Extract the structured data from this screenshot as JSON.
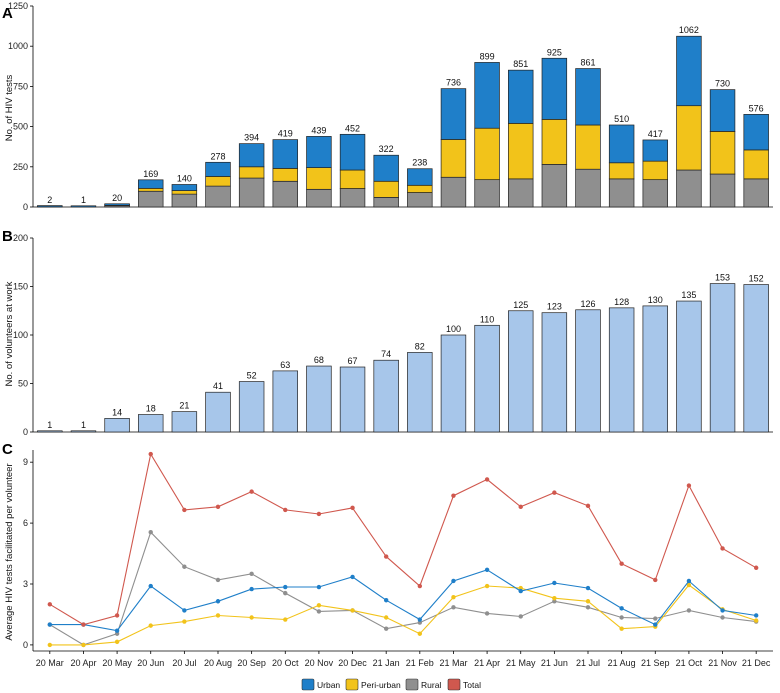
{
  "months": [
    "20 Mar",
    "20 Apr",
    "20 May",
    "20 Jun",
    "20 Jul",
    "20 Aug",
    "20 Sep",
    "20 Oct",
    "20 Nov",
    "20 Dec",
    "21 Jan",
    "21 Feb",
    "21 Mar",
    "21 Apr",
    "21 May",
    "21 Jun",
    "21 Jul",
    "21 Aug",
    "21 Sep",
    "21 Oct",
    "21 Nov",
    "21 Dec"
  ],
  "colors": {
    "urban": "#1f7fc9",
    "periurban": "#f2c31a",
    "rural": "#8f8f8f",
    "total": "#d0584e",
    "volunteers": "#a7c6ea"
  },
  "chart_data": [
    {
      "panel": "A",
      "type": "bar",
      "stacked": true,
      "ylabel": "No. of HIV tests",
      "ylim": [
        0,
        1250
      ],
      "yticks": [
        0,
        250,
        500,
        750,
        1000,
        1250
      ],
      "series": [
        {
          "name": "Rural",
          "values": [
            1,
            0,
            8,
            98,
            80,
            130,
            180,
            160,
            110,
            115,
            60,
            90,
            185,
            170,
            175,
            265,
            235,
            175,
            170,
            230,
            205,
            175
          ]
        },
        {
          "name": "Peri-urban",
          "values": [
            0,
            0,
            2,
            18,
            22,
            60,
            70,
            80,
            135,
            115,
            100,
            45,
            235,
            320,
            345,
            280,
            275,
            100,
            115,
            400,
            265,
            180
          ]
        },
        {
          "name": "Urban",
          "values": [
            1,
            1,
            10,
            53,
            38,
            88,
            144,
            179,
            194,
            222,
            162,
            103,
            316,
            409,
            331,
            380,
            351,
            235,
            132,
            432,
            260,
            221
          ]
        }
      ],
      "totals": [
        2,
        1,
        20,
        169,
        140,
        278,
        394,
        419,
        439,
        452,
        322,
        238,
        736,
        899,
        851,
        925,
        861,
        510,
        417,
        1062,
        730,
        576
      ]
    },
    {
      "panel": "B",
      "type": "bar",
      "ylabel": "No. of volunteers at work",
      "ylim": [
        0,
        200
      ],
      "yticks": [
        0,
        50,
        100,
        150,
        200
      ],
      "values": [
        1,
        1,
        14,
        18,
        21,
        41,
        52,
        63,
        68,
        67,
        74,
        82,
        100,
        110,
        125,
        123,
        126,
        128,
        130,
        135,
        153,
        152
      ]
    },
    {
      "panel": "C",
      "type": "line",
      "ylabel": "Average HIV tests facilitated per volunteer",
      "ylim": [
        -0.3,
        9.6
      ],
      "yticks": [
        0,
        3,
        6,
        9
      ],
      "series": [
        {
          "name": "Urban",
          "values": [
            1.0,
            1.0,
            0.7,
            2.9,
            1.7,
            2.15,
            2.75,
            2.85,
            2.85,
            3.35,
            2.2,
            1.25,
            3.15,
            3.7,
            2.65,
            3.05,
            2.8,
            1.8,
            1.0,
            3.15,
            1.7,
            1.45
          ]
        },
        {
          "name": "Peri-urban",
          "values": [
            0.0,
            0.0,
            0.15,
            0.95,
            1.15,
            1.45,
            1.35,
            1.25,
            1.95,
            1.7,
            1.35,
            0.55,
            2.35,
            2.9,
            2.8,
            2.3,
            2.15,
            0.8,
            0.9,
            2.95,
            1.75,
            1.2
          ]
        },
        {
          "name": "Rural",
          "values": [
            1.0,
            0.0,
            0.55,
            5.55,
            3.85,
            3.2,
            3.5,
            2.55,
            1.65,
            1.7,
            0.8,
            1.1,
            1.85,
            1.55,
            1.4,
            2.15,
            1.85,
            1.35,
            1.3,
            1.7,
            1.35,
            1.15
          ]
        },
        {
          "name": "Total",
          "values": [
            2.0,
            1.0,
            1.45,
            9.4,
            6.65,
            6.8,
            7.55,
            6.65,
            6.45,
            6.75,
            4.35,
            2.9,
            7.35,
            8.15,
            6.8,
            7.5,
            6.85,
            4.0,
            3.2,
            7.85,
            4.75,
            3.8
          ]
        }
      ]
    }
  ],
  "panels": {
    "a": "A",
    "b": "B",
    "c": "C"
  },
  "legend": {
    "urban": "Urban",
    "periurban": "Peri-urban",
    "rural": "Rural",
    "total": "Total"
  }
}
